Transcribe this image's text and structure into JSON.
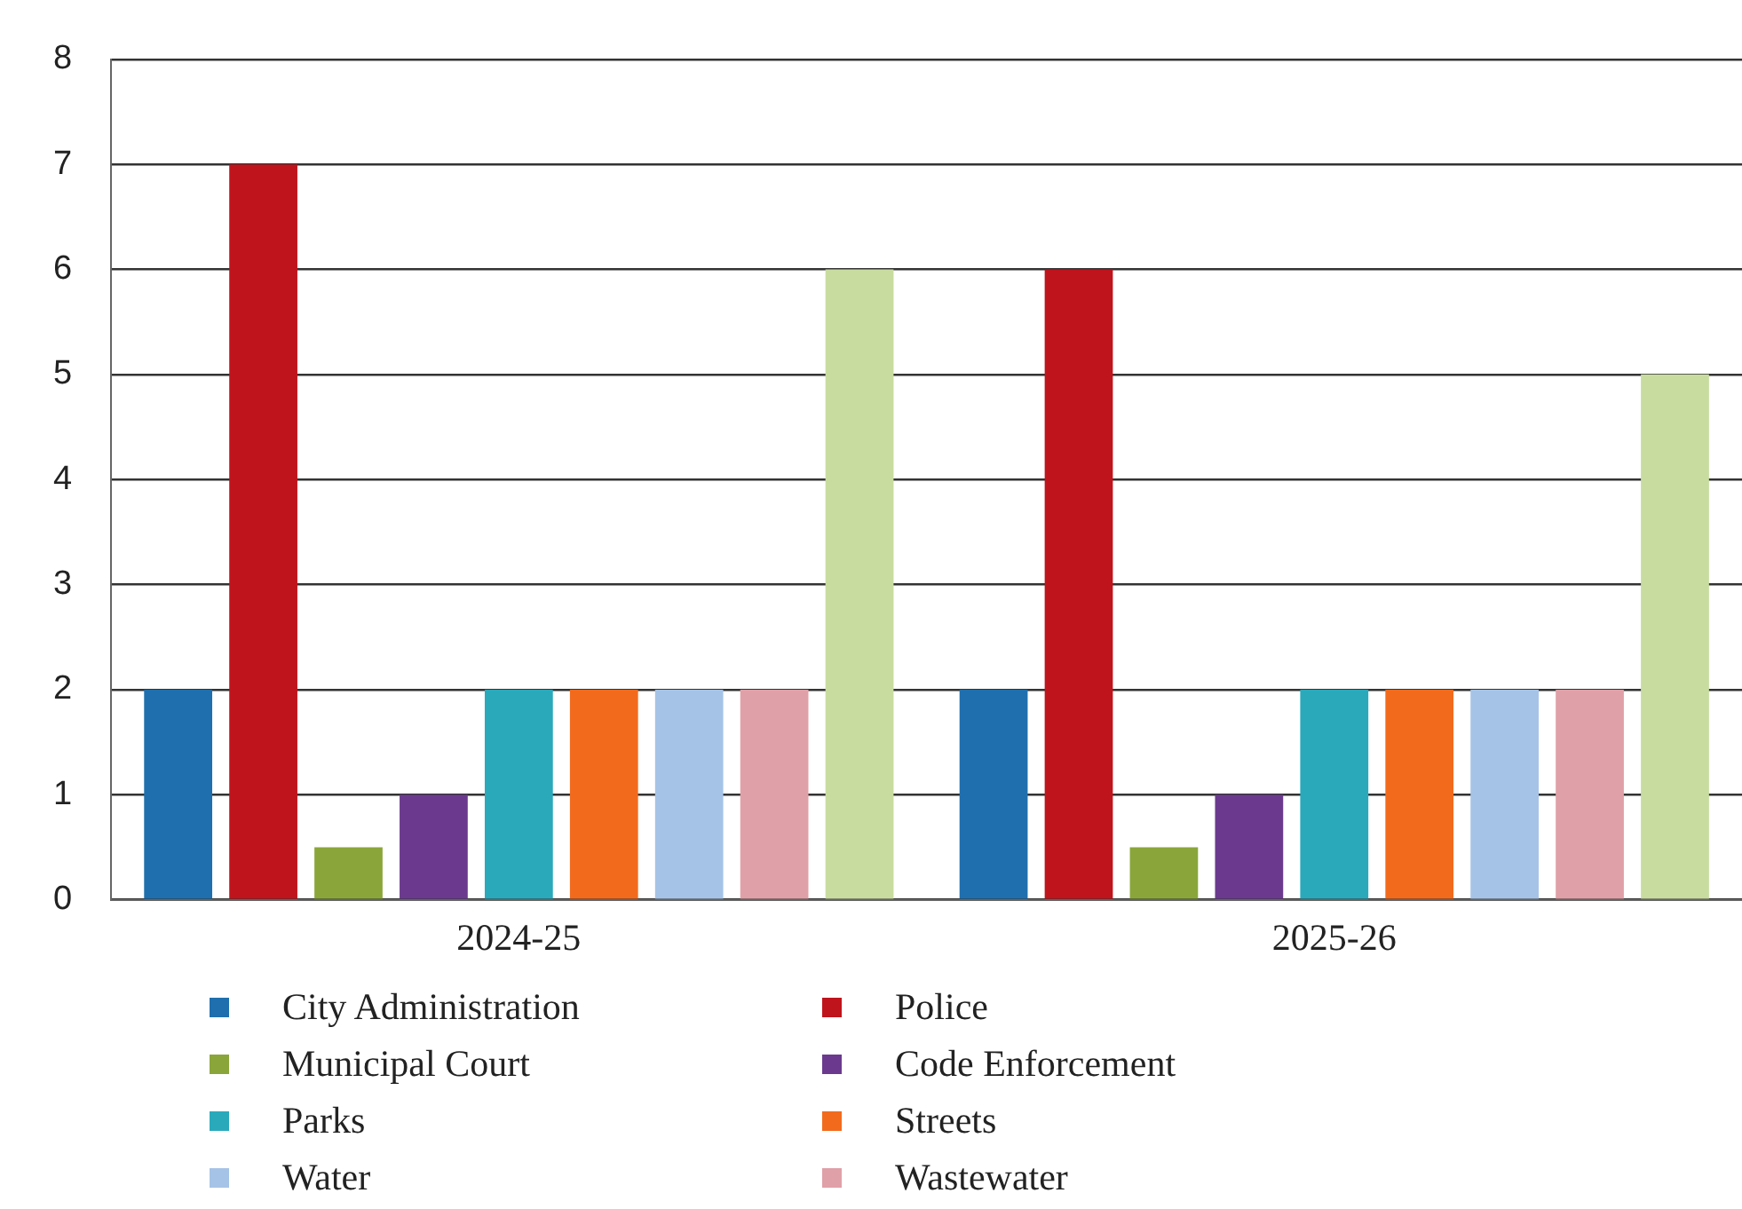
{
  "chart_data": {
    "type": "bar",
    "categories": [
      "2024-25",
      "2025-26"
    ],
    "series": [
      {
        "name": "City Administration",
        "color": "#1f6fae",
        "values": [
          2,
          2
        ]
      },
      {
        "name": "Police",
        "color": "#c0141c",
        "values": [
          7,
          6
        ]
      },
      {
        "name": "Municipal Court",
        "color": "#8aa63a",
        "values": [
          0.5,
          0.5
        ]
      },
      {
        "name": "Code Enforcement",
        "color": "#6b3a8e",
        "values": [
          1,
          1
        ]
      },
      {
        "name": "Parks",
        "color": "#2aa9bb",
        "values": [
          2,
          2
        ]
      },
      {
        "name": "Streets",
        "color": "#f26b1d",
        "values": [
          2,
          2
        ]
      },
      {
        "name": "Water",
        "color": "#a5c3e6",
        "values": [
          2,
          2
        ]
      },
      {
        "name": "Wastewater",
        "color": "#e0a0a8",
        "values": [
          2,
          2
        ]
      },
      {
        "color": "#c8dca0",
        "values": [
          6,
          5
        ]
      }
    ],
    "ylim": [
      0,
      8
    ],
    "yticks": [
      0,
      1,
      2,
      3,
      4,
      5,
      6,
      7,
      8
    ],
    "grid": "y",
    "legend": "bottom"
  }
}
